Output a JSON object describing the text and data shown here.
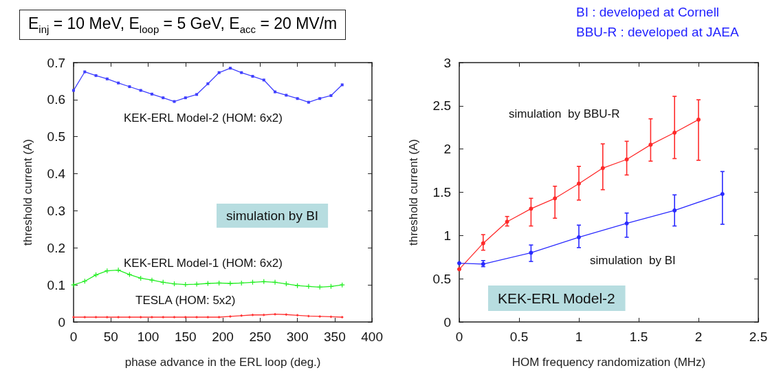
{
  "chart_data": [
    {
      "type": "line",
      "title": "E$_{inj}$ = 10 MeV, E$_{loop}$ = 5 GeV, E$_{acc}$ = 20 MV/m",
      "xlabel": "phase advance in the ERL loop (deg.)",
      "ylabel": "threshold current (A)",
      "x": [
        0,
        15,
        30,
        45,
        60,
        75,
        90,
        105,
        120,
        135,
        150,
        165,
        180,
        195,
        210,
        225,
        240,
        255,
        270,
        285,
        300,
        315,
        330,
        345,
        360
      ],
      "series": [
        {
          "color": "#3f3fff",
          "marker": "square",
          "values": [
            0.625,
            0.675,
            0.665,
            0.656,
            0.645,
            0.635,
            0.625,
            0.615,
            0.605,
            0.595,
            0.605,
            0.614,
            0.643,
            0.673,
            0.685,
            0.673,
            0.663,
            0.653,
            0.621,
            0.612,
            0.603,
            0.593,
            0.603,
            0.611,
            0.64
          ]
        },
        {
          "color": "#22ee22",
          "marker": "cross",
          "values": [
            0.1,
            0.11,
            0.127,
            0.138,
            0.14,
            0.128,
            0.118,
            0.113,
            0.107,
            0.103,
            0.101,
            0.102,
            0.104,
            0.105,
            0.104,
            0.105,
            0.107,
            0.109,
            0.107,
            0.103,
            0.098,
            0.096,
            0.094,
            0.096,
            0.1
          ]
        },
        {
          "color": "#ff3333",
          "marker": "diamond",
          "values": [
            0.013,
            0.013,
            0.013,
            0.013,
            0.013,
            0.013,
            0.013,
            0.013,
            0.013,
            0.013,
            0.013,
            0.013,
            0.013,
            0.013,
            0.015,
            0.017,
            0.019,
            0.019,
            0.021,
            0.02,
            0.018,
            0.016,
            0.015,
            0.014,
            0.013
          ]
        }
      ],
      "annotations": [
        "KEK-ERL Model-2 (HOM: 6x2)",
        "KEK-ERL Model-1 (HOM: 6x2)",
        "TESLA (HOM: 5x2)",
        "simulation by BI"
      ],
      "xlim": [
        0,
        400
      ],
      "xticks": [
        0,
        50,
        100,
        150,
        200,
        250,
        300,
        350,
        400
      ],
      "ylim": [
        0,
        0.7
      ],
      "yticks": [
        0,
        0.1,
        0.2,
        0.3,
        0.4,
        0.5,
        0.6,
        0.7
      ],
      "grid": false,
      "line_style": "solid"
    },
    {
      "type": "line",
      "xlabel": "HOM frequency randomization (MHz)",
      "ylabel": "threshold current (A)",
      "series": [
        {
          "color": "#ff2a2a",
          "x": [
            0,
            0.2,
            0.4,
            0.6,
            0.8,
            1.0,
            1.2,
            1.4,
            1.6,
            1.8,
            2.0
          ],
          "values": [
            0.61,
            0.91,
            1.16,
            1.31,
            1.43,
            1.6,
            1.78,
            1.88,
            2.05,
            2.19,
            2.34
          ],
          "errors": [
            null,
            [
              0.83,
              1.01
            ],
            [
              1.11,
              1.22
            ],
            [
              1.11,
              1.43
            ],
            [
              1.2,
              1.57
            ],
            [
              1.41,
              1.8
            ],
            [
              1.53,
              2.06
            ],
            [
              1.7,
              2.09
            ],
            [
              1.86,
              2.35
            ],
            [
              1.89,
              2.61
            ],
            [
              1.87,
              2.57
            ]
          ]
        },
        {
          "color": "#2a2aff",
          "x": [
            0,
            0.2,
            0.6,
            1.0,
            1.4,
            1.8,
            2.2
          ],
          "values": [
            0.68,
            0.67,
            0.8,
            0.98,
            1.14,
            1.29,
            1.48
          ],
          "errors": [
            null,
            [
              0.64,
              0.71
            ],
            [
              0.7,
              0.89
            ],
            [
              0.86,
              1.12
            ],
            [
              0.98,
              1.26
            ],
            [
              1.11,
              1.47
            ],
            [
              1.13,
              1.74
            ]
          ]
        }
      ],
      "annotations": [
        "simulation  by BBU-R",
        "simulation  by BI",
        "BI : developed at Cornell",
        "BBU-R : developed at JAEA",
        "KEK-ERL Model-2"
      ],
      "xlim": [
        0,
        2.5
      ],
      "xticks": [
        0,
        0.5,
        1,
        1.5,
        2,
        2.5
      ],
      "ylim": [
        0,
        3
      ],
      "yticks": [
        0,
        0.5,
        1,
        1.5,
        2,
        2.5,
        3
      ],
      "grid": false,
      "marker": "circle",
      "line_style": "solid"
    }
  ]
}
